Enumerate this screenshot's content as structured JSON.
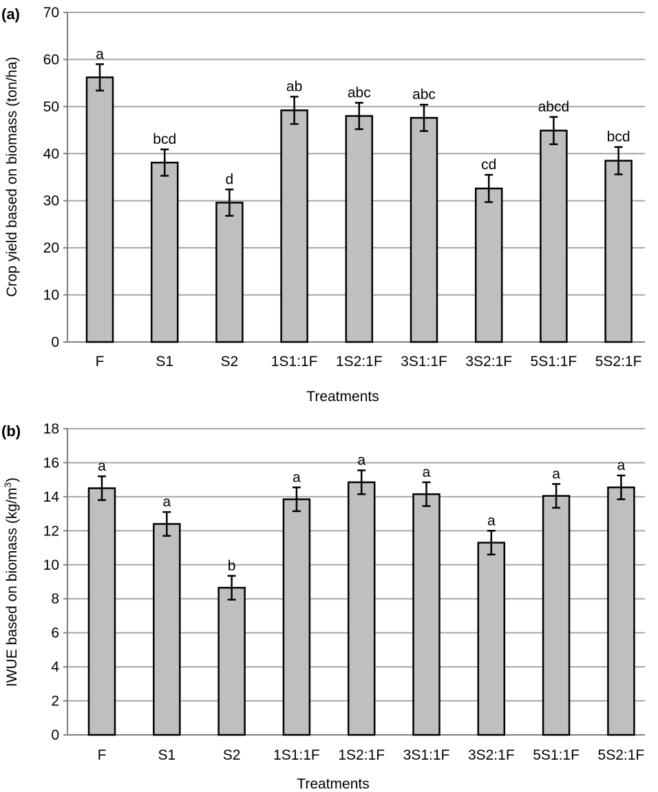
{
  "colors": {
    "bar_fill": "#bfbfbf",
    "bar_edge": "#000000",
    "grid": "#a6a6a6"
  },
  "chart_data": [
    {
      "panel_label": "(a)",
      "type": "bar",
      "categories": [
        "F",
        "S1",
        "S2",
        "1S1:1F",
        "1S2:1F",
        "3S1:1F",
        "3S2:1F",
        "5S1:1F",
        "5S2:1F"
      ],
      "values": [
        56.2,
        38.1,
        29.6,
        49.2,
        48.0,
        47.6,
        32.6,
        44.9,
        38.5
      ],
      "errors": [
        2.8,
        2.8,
        2.8,
        2.9,
        2.8,
        2.8,
        2.9,
        2.9,
        2.9
      ],
      "significance": [
        "a",
        "bcd",
        "d",
        "ab",
        "abc",
        "abc",
        "cd",
        "abcd",
        "bcd"
      ],
      "xlabel": "Treatments",
      "ylabel": "Crop yield based on biomass (ton/ha)",
      "ylim": [
        0,
        70
      ],
      "yticks": [
        "0",
        "10",
        "20",
        "30",
        "40",
        "50",
        "60",
        "70"
      ],
      "grid": true
    },
    {
      "panel_label": "(b)",
      "type": "bar",
      "categories": [
        "F",
        "S1",
        "S2",
        "1S1:1F",
        "1S2:1F",
        "3S1:1F",
        "3S2:1F",
        "5S1:1F",
        "5S2:1F"
      ],
      "values": [
        14.5,
        12.4,
        8.65,
        13.85,
        14.85,
        14.15,
        11.3,
        14.05,
        14.55
      ],
      "errors": [
        0.7,
        0.7,
        0.7,
        0.7,
        0.7,
        0.7,
        0.7,
        0.7,
        0.7
      ],
      "significance": [
        "a",
        "a",
        "b",
        "a",
        "a",
        "a",
        "a",
        "a",
        "a"
      ],
      "xlabel": "Treatments",
      "ylabel_prefix": "IWUE based on biomass (kg/m",
      "ylabel_sup": "3",
      "ylabel_suffix": ")",
      "ylim": [
        0,
        18
      ],
      "yticks": [
        "0",
        "2",
        "4",
        "6",
        "8",
        "10",
        "12",
        "14",
        "16",
        "18"
      ],
      "grid": true
    }
  ]
}
